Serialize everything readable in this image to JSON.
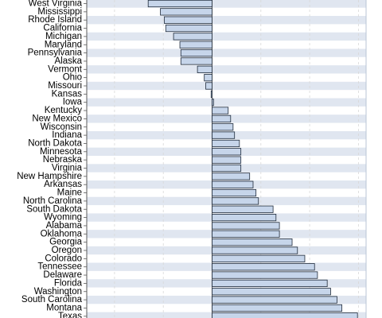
{
  "colors": {
    "band": "#e0e6f0",
    "bar_fill": "#c6d5ea",
    "bar_stroke": "#1e2a3a",
    "grid": "#d8d8d8",
    "axis": "#5a5a5a",
    "frame": "#b8c4d6"
  },
  "chart_data": {
    "type": "bar",
    "orientation": "horizontal",
    "title": "",
    "xlabel": "",
    "ylabel": "",
    "xlim": [
      -6,
      3.5
    ],
    "grid": true,
    "legend": "none",
    "note": "image is a cropped portion of a taller chart; only states visible are listed",
    "categories": [
      "West Virginia",
      "Mississippi",
      "Rhode Island",
      "California",
      "Michigan",
      "Maryland",
      "Pennsylvania",
      "Alaska",
      "Vermont",
      "Ohio",
      "Missouri",
      "Kansas",
      "Iowa",
      "Kentucky",
      "New Mexico",
      "Wisconsin",
      "Indiana",
      "North Dakota",
      "Minnesota",
      "Nebraska",
      "Virginia",
      "New Hampshire",
      "Arkansas",
      "Maine",
      "North Carolina",
      "South Dakota",
      "Wyoming",
      "Alabama",
      "Oklahoma",
      "Georgia",
      "Oregon",
      "Colorado",
      "Tennessee",
      "Delaware",
      "Florida",
      "Washington",
      "South Carolina",
      "Montana",
      "Texas"
    ],
    "values": [
      -1.31,
      -1.06,
      -0.98,
      -0.95,
      -0.79,
      -0.66,
      -0.64,
      -0.64,
      -0.3,
      -0.16,
      -0.13,
      -0.02,
      0.03,
      0.33,
      0.38,
      0.43,
      0.46,
      0.56,
      0.59,
      0.59,
      0.59,
      0.77,
      0.84,
      0.9,
      0.95,
      1.25,
      1.31,
      1.38,
      1.38,
      1.64,
      1.75,
      1.9,
      2.1,
      2.16,
      2.36,
      2.43,
      2.56,
      2.66,
      2.98
    ]
  }
}
